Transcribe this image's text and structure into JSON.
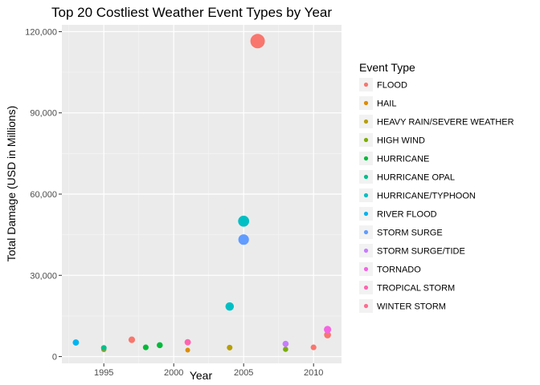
{
  "chart_data": {
    "type": "scatter",
    "title": "Top 20 Costliest Weather Event Types by Year",
    "xlabel": "Year",
    "ylabel": "Total Damage (USD in Millions)",
    "xlim": [
      1992,
      2012
    ],
    "ylim": [
      -2500,
      122500
    ],
    "x_ticks": [
      1995,
      2000,
      2005,
      2010
    ],
    "y_ticks": [
      0,
      30000,
      60000,
      90000,
      120000
    ],
    "y_tick_labels": [
      "0",
      "30,000",
      "60,000",
      "90,000",
      "120,000"
    ],
    "grid": true,
    "panel_background": "#ebebeb",
    "legend": {
      "title": "Event Type",
      "placement": "right"
    },
    "series": [
      {
        "name": "FLOOD",
        "color": "#F8766D",
        "points": [
          {
            "x": 1997,
            "y": 6200
          },
          {
            "x": 2006,
            "y": 116500
          },
          {
            "x": 2010,
            "y": 3400
          },
          {
            "x": 2011,
            "y": 8000
          }
        ]
      },
      {
        "name": "HAIL",
        "color": "#DE8C00",
        "points": [
          {
            "x": 1995,
            "y": 2600
          },
          {
            "x": 2001,
            "y": 2400
          }
        ]
      },
      {
        "name": "HEAVY RAIN/SEVERE WEATHER",
        "color": "#B79F00",
        "points": [
          {
            "x": 2004,
            "y": 3300
          }
        ]
      },
      {
        "name": "HIGH WIND",
        "color": "#7CAE00",
        "points": [
          {
            "x": 2008,
            "y": 2700
          }
        ]
      },
      {
        "name": "HURRICANE",
        "color": "#00BA38",
        "points": [
          {
            "x": 1998,
            "y": 3400
          },
          {
            "x": 1999,
            "y": 4200
          }
        ]
      },
      {
        "name": "HURRICANE OPAL",
        "color": "#00C08B",
        "points": [
          {
            "x": 1995,
            "y": 3200
          }
        ]
      },
      {
        "name": "HURRICANE/TYPHOON",
        "color": "#00BFC4",
        "points": [
          {
            "x": 2004,
            "y": 18500
          },
          {
            "x": 2005,
            "y": 50000
          }
        ]
      },
      {
        "name": "RIVER FLOOD",
        "color": "#00B4F0",
        "points": [
          {
            "x": 1993,
            "y": 5200
          }
        ]
      },
      {
        "name": "STORM SURGE",
        "color": "#619CFF",
        "points": [
          {
            "x": 2005,
            "y": 43200
          }
        ]
      },
      {
        "name": "STORM SURGE/TIDE",
        "color": "#C77CFF",
        "points": [
          {
            "x": 2008,
            "y": 4700
          }
        ]
      },
      {
        "name": "TORNADO",
        "color": "#F564E3",
        "points": [
          {
            "x": 2011,
            "y": 10000
          }
        ]
      },
      {
        "name": "TROPICAL STORM",
        "color": "#FF64B0",
        "points": [
          {
            "x": 2001,
            "y": 5300
          }
        ]
      },
      {
        "name": "WINTER STORM",
        "color": "#FF6C91",
        "points": []
      }
    ]
  }
}
